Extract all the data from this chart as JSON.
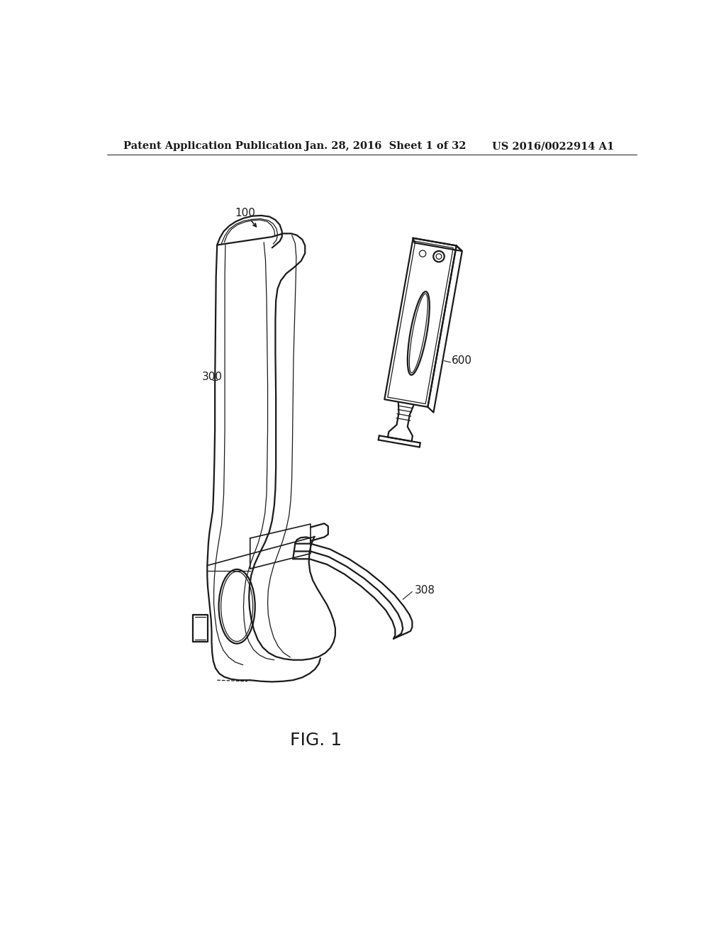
{
  "bg_color": "#ffffff",
  "header_left": "Patent Application Publication",
  "header_center": "Jan. 28, 2016  Sheet 1 of 32",
  "header_right": "US 2016/0022914 A1",
  "header_fontsize": 10.5,
  "fig_label": "FIG. 1",
  "fig_label_fontsize": 18,
  "label_100": "100",
  "label_300": "300",
  "label_308": "308",
  "label_600": "600",
  "line_color": "#1a1a1a",
  "line_width": 1.6,
  "thin_line": 0.9,
  "med_line": 1.2
}
